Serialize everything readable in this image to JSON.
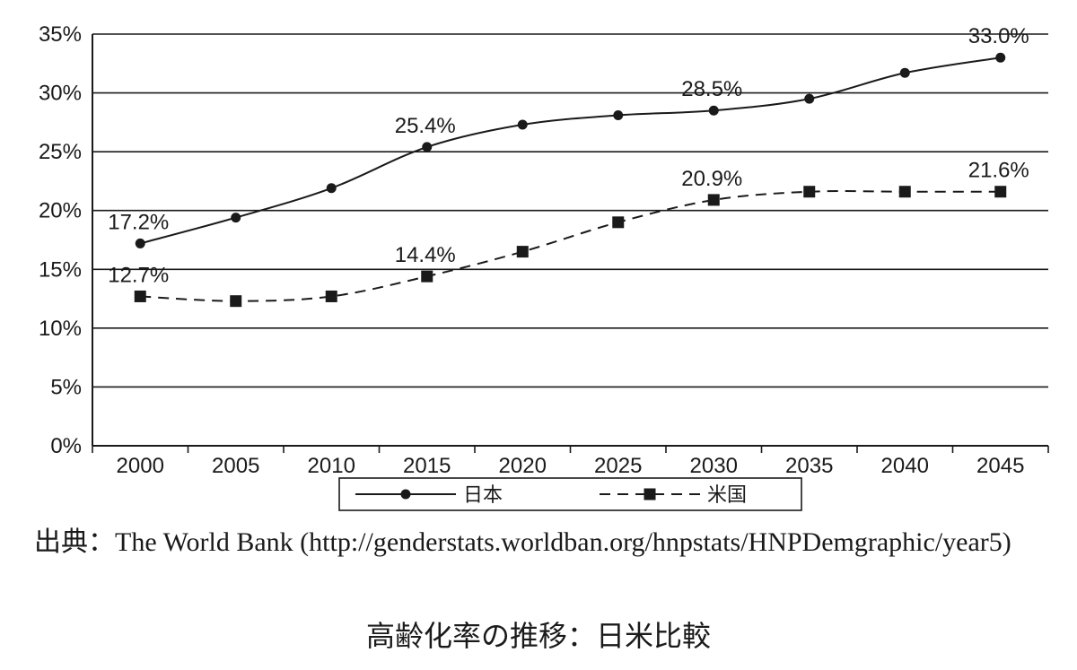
{
  "chart_data": {
    "type": "line",
    "title": "",
    "xlabel": "",
    "ylabel": "",
    "categories": [
      "2000",
      "2005",
      "2010",
      "2015",
      "2020",
      "2025",
      "2030",
      "2035",
      "2040",
      "2045"
    ],
    "ylim": [
      0,
      35
    ],
    "yticks": [
      0,
      5,
      10,
      15,
      20,
      25,
      30,
      35
    ],
    "ytick_labels": [
      "0%",
      "5%",
      "10%",
      "15%",
      "20%",
      "25%",
      "30%",
      "35%"
    ],
    "grid": "horizontal",
    "legend_position": "bottom",
    "series": [
      {
        "name": "日本",
        "style": "solid",
        "marker": "circle",
        "values": [
          17.2,
          19.4,
          21.9,
          25.4,
          27.3,
          28.1,
          28.5,
          29.5,
          31.7,
          33.0
        ],
        "annotations": [
          {
            "index": 0,
            "text": "17.2%"
          },
          {
            "index": 3,
            "text": "25.4%"
          },
          {
            "index": 6,
            "text": "28.5%"
          },
          {
            "index": 9,
            "text": "33.0%"
          }
        ]
      },
      {
        "name": "米国",
        "style": "dashed",
        "marker": "square",
        "values": [
          12.7,
          12.3,
          12.7,
          14.4,
          16.5,
          19.0,
          20.9,
          21.6,
          21.6,
          21.6
        ],
        "annotations": [
          {
            "index": 0,
            "text": "12.7%"
          },
          {
            "index": 3,
            "text": "14.4%"
          },
          {
            "index": 6,
            "text": "20.9%"
          },
          {
            "index": 9,
            "text": "21.6%"
          }
        ]
      }
    ],
    "colors": {
      "line": "#1a1a1a",
      "grid": "#1a1a1a"
    }
  },
  "source": "出典：The World Bank (http://genderstats.worldban.org/hnpstats/HNPDemgraphic/year5)",
  "caption": "高齢化率の推移：日米比較"
}
